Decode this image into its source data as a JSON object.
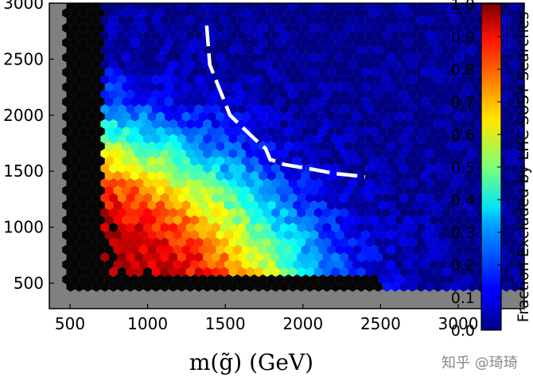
{
  "chart_data": {
    "type": "heatmap",
    "title": "",
    "xlabel": "m(g̃) (GeV)",
    "ylabel": "",
    "xlim": [
      450,
      3000
    ],
    "ylim": [
      400,
      3000
    ],
    "x_ticks": [
      500,
      1000,
      1500,
      2000,
      2500,
      3000
    ],
    "y_ticks": [
      500,
      1000,
      1500,
      2000,
      2500,
      3000
    ],
    "colorbar": {
      "label": "Fraction Excluded by LHC SUSY Searches",
      "range": [
        0.0,
        1.0
      ],
      "ticks": [
        "0.0",
        "0.1",
        "0.2",
        "0.3",
        "0.4",
        "0.5",
        "0.6",
        "0.7",
        "0.8",
        "0.9",
        "1.0"
      ],
      "colormap": "jet"
    },
    "grid": false,
    "background_color": "#808080",
    "summary_values": [
      {
        "region": "m(g̃) < 700 GeV",
        "fraction_excluded": 1.0
      },
      {
        "region": "m(g̃) ≈ 1000 GeV, low mass",
        "fraction_excluded": 0.9
      },
      {
        "region": "m(g̃) ≈ 1800 GeV, low mass",
        "fraction_excluded": 0.55
      },
      {
        "region": "m(g̃) > 2500 GeV, high mass",
        "fraction_excluded": 0.05
      }
    ],
    "boundary_line": {
      "style": "dashed",
      "color": "#ffffff",
      "x": [
        1380,
        1400,
        1530,
        1680,
        1760,
        1790,
        1800,
        1880,
        2050,
        2200,
        2400
      ],
      "y": [
        2800,
        2450,
        2000,
        1800,
        1700,
        1600,
        1600,
        1560,
        1520,
        1480,
        1450
      ]
    }
  },
  "watermark": "知乎 @琦琦"
}
